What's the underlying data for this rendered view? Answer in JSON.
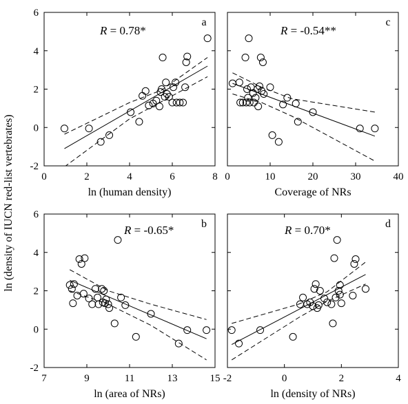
{
  "figure": {
    "shared_ylabel": "ln (density of IUCN red-list vertebrates)"
  },
  "chart_data": [
    {
      "id": "a",
      "type": "scatter",
      "panel_letter": "a",
      "annotation_prefix": "R",
      "annotation_value": " = 0.78*",
      "xlabel": "ln (human density)",
      "xlim": [
        0,
        8
      ],
      "ylim": [
        -2,
        6
      ],
      "xticks": [
        0,
        2,
        4,
        6,
        8
      ],
      "yticks": [
        -2,
        0,
        2,
        4,
        6
      ],
      "show_xtick_labels": true,
      "show_ytick_labels": true,
      "points": [
        [
          0.95,
          -0.05
        ],
        [
          2.1,
          -0.05
        ],
        [
          2.65,
          -0.75
        ],
        [
          3.05,
          -0.4
        ],
        [
          4.05,
          0.8
        ],
        [
          4.45,
          0.3
        ],
        [
          4.6,
          1.65
        ],
        [
          4.75,
          1.9
        ],
        [
          4.9,
          1.15
        ],
        [
          5.1,
          1.25
        ],
        [
          5.25,
          1.4
        ],
        [
          5.4,
          1.1
        ],
        [
          5.45,
          1.85
        ],
        [
          5.5,
          2.0
        ],
        [
          5.55,
          3.65
        ],
        [
          5.65,
          1.6
        ],
        [
          5.7,
          2.35
        ],
        [
          5.75,
          1.75
        ],
        [
          5.85,
          1.6
        ],
        [
          6.0,
          1.3
        ],
        [
          6.05,
          2.1
        ],
        [
          6.15,
          2.35
        ],
        [
          6.2,
          1.3
        ],
        [
          6.35,
          1.3
        ],
        [
          6.5,
          1.3
        ],
        [
          6.6,
          2.1
        ],
        [
          6.65,
          3.4
        ],
        [
          6.7,
          3.7
        ],
        [
          7.65,
          4.65
        ]
      ],
      "fit": [
        [
          0.95,
          -1.1
        ],
        [
          7.65,
          3.2
        ]
      ],
      "ci_upper": [
        [
          0.95,
          -0.35
        ],
        [
          4.0,
          1.3
        ],
        [
          5.5,
          1.95
        ],
        [
          7.65,
          3.65
        ]
      ],
      "ci_lower": [
        [
          0.95,
          -2.05
        ],
        [
          4.0,
          0.45
        ],
        [
          5.5,
          1.35
        ],
        [
          7.65,
          2.65
        ]
      ]
    },
    {
      "id": "c",
      "type": "scatter",
      "panel_letter": "c",
      "annotation_prefix": "R",
      "annotation_value": " = -0.54**",
      "xlabel": "Coverage of NRs",
      "xlim": [
        0,
        40
      ],
      "ylim": [
        -2,
        6
      ],
      "xticks": [
        0,
        10,
        20,
        30,
        40
      ],
      "yticks": [
        -2,
        0,
        2,
        4,
        6
      ],
      "show_xtick_labels": true,
      "show_ytick_labels": false,
      "points": [
        [
          1.2,
          2.3
        ],
        [
          2.8,
          2.35
        ],
        [
          3.0,
          1.3
        ],
        [
          3.6,
          1.3
        ],
        [
          4.2,
          3.65
        ],
        [
          4.4,
          1.3
        ],
        [
          4.6,
          2.0
        ],
        [
          4.8,
          1.55
        ],
        [
          5.0,
          4.65
        ],
        [
          5.2,
          1.3
        ],
        [
          5.5,
          2.1
        ],
        [
          6.0,
          1.8
        ],
        [
          6.2,
          1.3
        ],
        [
          6.6,
          1.55
        ],
        [
          7.0,
          2.0
        ],
        [
          7.2,
          1.1
        ],
        [
          7.5,
          2.15
        ],
        [
          7.8,
          3.65
        ],
        [
          8.0,
          1.9
        ],
        [
          8.3,
          3.4
        ],
        [
          8.5,
          1.75
        ],
        [
          10.0,
          2.1
        ],
        [
          10.5,
          -0.4
        ],
        [
          12.0,
          -0.75
        ],
        [
          13.0,
          1.2
        ],
        [
          14.0,
          1.55
        ],
        [
          16.0,
          1.25
        ],
        [
          16.5,
          0.3
        ],
        [
          20.0,
          0.8
        ],
        [
          31.0,
          -0.05
        ],
        [
          34.5,
          -0.05
        ]
      ],
      "fit": [
        [
          1.2,
          2.3
        ],
        [
          34.5,
          -0.45
        ]
      ],
      "ci_upper": [
        [
          1.2,
          2.85
        ],
        [
          8.0,
          2.1
        ],
        [
          15.0,
          1.5
        ],
        [
          34.5,
          0.8
        ]
      ],
      "ci_lower": [
        [
          1.2,
          1.75
        ],
        [
          8.0,
          1.3
        ],
        [
          15.0,
          0.6
        ],
        [
          34.5,
          -1.75
        ]
      ]
    },
    {
      "id": "b",
      "type": "scatter",
      "panel_letter": "b",
      "annotation_prefix": "R",
      "annotation_value": " = -0.65*",
      "xlabel": "ln (area of NRs)",
      "xlim": [
        7,
        15
      ],
      "ylim": [
        -2,
        6
      ],
      "xticks": [
        7,
        9,
        11,
        13,
        15
      ],
      "yticks": [
        -2,
        0,
        2,
        4,
        6
      ],
      "show_xtick_labels": true,
      "show_ytick_labels": true,
      "points": [
        [
          8.2,
          2.3
        ],
        [
          8.3,
          2.1
        ],
        [
          8.35,
          1.35
        ],
        [
          8.4,
          2.35
        ],
        [
          8.55,
          1.75
        ],
        [
          8.65,
          3.65
        ],
        [
          8.75,
          3.4
        ],
        [
          8.85,
          1.85
        ],
        [
          8.9,
          3.7
        ],
        [
          9.1,
          1.6
        ],
        [
          9.25,
          1.3
        ],
        [
          9.4,
          2.1
        ],
        [
          9.5,
          1.65
        ],
        [
          9.55,
          1.3
        ],
        [
          9.7,
          2.1
        ],
        [
          9.75,
          1.4
        ],
        [
          9.8,
          2.0
        ],
        [
          9.85,
          1.35
        ],
        [
          9.9,
          1.55
        ],
        [
          10.0,
          1.3
        ],
        [
          10.05,
          1.1
        ],
        [
          10.3,
          0.3
        ],
        [
          10.45,
          4.65
        ],
        [
          10.6,
          1.65
        ],
        [
          10.8,
          1.25
        ],
        [
          11.3,
          -0.4
        ],
        [
          12.0,
          0.8
        ],
        [
          13.3,
          -0.75
        ],
        [
          13.7,
          -0.05
        ],
        [
          14.6,
          -0.05
        ]
      ],
      "fit": [
        [
          8.2,
          2.55
        ],
        [
          14.6,
          -0.5
        ]
      ],
      "ci_upper": [
        [
          8.2,
          3.1
        ],
        [
          10.0,
          2.0
        ],
        [
          12.0,
          1.3
        ],
        [
          14.6,
          0.5
        ]
      ],
      "ci_lower": [
        [
          8.2,
          2.0
        ],
        [
          10.0,
          1.3
        ],
        [
          12.0,
          0.2
        ],
        [
          14.6,
          -1.6
        ]
      ]
    },
    {
      "id": "d",
      "type": "scatter",
      "panel_letter": "d",
      "annotation_prefix": "R",
      "annotation_value": " = 0.70*",
      "xlabel": "ln (density of NRs)",
      "xlim": [
        -2,
        4
      ],
      "ylim": [
        -2,
        6
      ],
      "xticks": [
        -2,
        0,
        2,
        4
      ],
      "yticks": [
        -2,
        0,
        2,
        4,
        6
      ],
      "show_xtick_labels": true,
      "show_ytick_labels": false,
      "points": [
        [
          -1.85,
          -0.05
        ],
        [
          -1.6,
          -0.75
        ],
        [
          -0.85,
          -0.05
        ],
        [
          0.3,
          -0.4
        ],
        [
          0.55,
          1.3
        ],
        [
          0.65,
          1.65
        ],
        [
          0.8,
          1.3
        ],
        [
          0.9,
          1.4
        ],
        [
          1.0,
          1.2
        ],
        [
          1.05,
          2.1
        ],
        [
          1.1,
          2.35
        ],
        [
          1.15,
          1.1
        ],
        [
          1.2,
          1.25
        ],
        [
          1.25,
          2.0
        ],
        [
          1.4,
          1.6
        ],
        [
          1.5,
          1.4
        ],
        [
          1.65,
          1.3
        ],
        [
          1.7,
          0.3
        ],
        [
          1.75,
          3.7
        ],
        [
          1.8,
          1.65
        ],
        [
          1.85,
          4.65
        ],
        [
          1.9,
          2.0
        ],
        [
          1.95,
          2.3
        ],
        [
          1.95,
          1.8
        ],
        [
          2.0,
          1.35
        ],
        [
          2.4,
          1.75
        ],
        [
          2.45,
          3.4
        ],
        [
          2.5,
          3.65
        ],
        [
          2.85,
          2.1
        ]
      ],
      "fit": [
        [
          -1.85,
          -0.8
        ],
        [
          2.85,
          2.85
        ]
      ],
      "ci_upper": [
        [
          -1.85,
          0.3
        ],
        [
          0.5,
          1.3
        ],
        [
          1.5,
          1.95
        ],
        [
          2.85,
          3.5
        ]
      ],
      "ci_lower": [
        [
          -1.85,
          -1.6
        ],
        [
          0.5,
          0.6
        ],
        [
          1.5,
          1.45
        ],
        [
          2.85,
          2.35
        ]
      ]
    }
  ]
}
